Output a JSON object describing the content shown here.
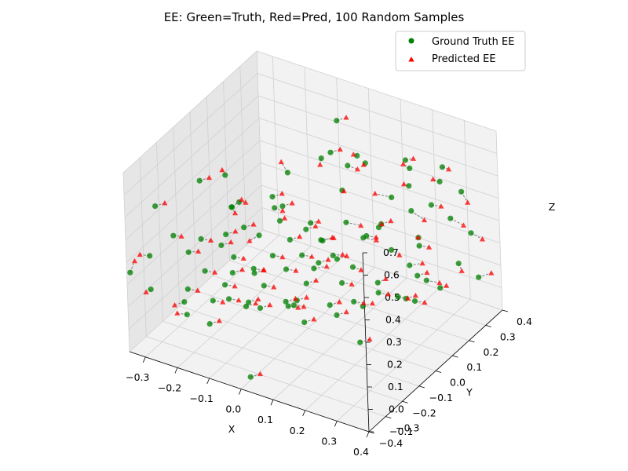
{
  "chart_data": {
    "type": "scatter",
    "projection": "3d",
    "title": "EE: Green=Truth, Red=Pred, 100 Random Samples",
    "xlabel": "X",
    "ylabel": "Y",
    "zlabel": "Z",
    "xlim": [
      -0.35,
      0.4
    ],
    "ylim": [
      -0.4,
      0.4
    ],
    "zlim": [
      -0.1,
      0.7
    ],
    "xticks": [
      "−0.3",
      "−0.2",
      "−0.1",
      "0.0",
      "0.1",
      "0.2",
      "0.3",
      "0.4"
    ],
    "yticks": [
      "−0.4",
      "−0.3",
      "−0.2",
      "−0.1",
      "0.0",
      "0.1",
      "0.2",
      "0.3",
      "0.4"
    ],
    "zticks": [
      "−0.1",
      "0.0",
      "0.1",
      "0.2",
      "0.3",
      "0.4",
      "0.5",
      "0.6",
      "0.7"
    ],
    "grid": true,
    "legend_position": "top-right",
    "colors": {
      "truth": "#008000",
      "pred": "#ff0000",
      "pane": "#f2f2f2",
      "grid": "#d0d0d0",
      "connector": "#7f7f7f"
    },
    "series": [
      {
        "name": "Ground Truth EE",
        "marker": "circle"
      },
      {
        "name": "Predicted EE",
        "marker": "triangle"
      }
    ],
    "pairs": [
      {
        "truth": [
          -0.02,
          -0.05,
          0.62
        ],
        "pred": [
          -0.05,
          -0.03,
          0.64
        ]
      },
      {
        "truth": [
          0.05,
          0.02,
          0.67
        ],
        "pred": [
          0.04,
          0.03,
          0.63
        ]
      },
      {
        "truth": [
          0.12,
          0.1,
          0.66
        ],
        "pred": [
          0.12,
          0.08,
          0.68
        ]
      },
      {
        "truth": [
          0.14,
          0.11,
          0.63
        ],
        "pred": [
          0.14,
          0.1,
          0.63
        ]
      },
      {
        "truth": [
          0.1,
          0.08,
          0.62
        ],
        "pred": [
          0.12,
          0.1,
          0.6
        ]
      },
      {
        "truth": [
          -0.18,
          -0.12,
          0.58
        ],
        "pred": [
          -0.2,
          -0.1,
          0.58
        ]
      },
      {
        "truth": [
          0.22,
          0.22,
          0.57
        ],
        "pred": [
          0.2,
          0.22,
          0.58
        ]
      },
      {
        "truth": [
          0.28,
          0.3,
          0.55
        ],
        "pred": [
          0.3,
          0.3,
          0.55
        ]
      },
      {
        "truth": [
          0.27,
          0.3,
          0.48
        ],
        "pred": [
          0.26,
          0.28,
          0.5
        ]
      },
      {
        "truth": [
          0.21,
          0.23,
          0.48
        ],
        "pred": [
          0.2,
          0.22,
          0.49
        ]
      },
      {
        "truth": [
          0.31,
          0.35,
          0.42
        ],
        "pred": [
          0.34,
          0.33,
          0.4
        ]
      },
      {
        "truth": [
          0.17,
          0.2,
          0.43
        ],
        "pred": [
          0.14,
          0.16,
          0.46
        ]
      },
      {
        "truth": [
          0.08,
          0.08,
          0.5
        ],
        "pred": [
          0.08,
          0.09,
          0.49
        ]
      },
      {
        "truth": [
          -0.12,
          -0.2,
          0.52
        ],
        "pred": [
          -0.12,
          -0.18,
          0.48
        ]
      },
      {
        "truth": [
          -0.15,
          -0.1,
          0.46
        ],
        "pred": [
          -0.14,
          -0.08,
          0.45
        ]
      },
      {
        "truth": [
          -0.06,
          -0.06,
          0.45
        ],
        "pred": [
          -0.04,
          -0.05,
          0.44
        ]
      },
      {
        "truth": [
          -0.2,
          -0.05,
          0.38
        ],
        "pred": [
          -0.18,
          -0.03,
          0.41
        ]
      },
      {
        "truth": [
          -0.11,
          -0.15,
          0.4
        ],
        "pred": [
          -0.09,
          -0.13,
          0.41
        ]
      },
      {
        "truth": [
          -0.05,
          -0.05,
          0.39
        ],
        "pred": [
          -0.04,
          -0.04,
          0.4
        ]
      },
      {
        "truth": [
          0.02,
          0.0,
          0.38
        ],
        "pred": [
          0.04,
          0.01,
          0.39
        ]
      },
      {
        "truth": [
          0.1,
          0.06,
          0.38
        ],
        "pred": [
          0.13,
          0.09,
          0.36
        ]
      },
      {
        "truth": [
          0.17,
          0.12,
          0.35
        ],
        "pred": [
          0.18,
          0.12,
          0.37
        ]
      },
      {
        "truth": [
          0.22,
          0.22,
          0.38
        ],
        "pred": [
          0.25,
          0.24,
          0.34
        ]
      },
      {
        "truth": [
          0.3,
          0.3,
          0.33
        ],
        "pred": [
          0.33,
          0.32,
          0.3
        ]
      },
      {
        "truth": [
          -0.28,
          -0.25,
          0.35
        ],
        "pred": [
          -0.26,
          -0.24,
          0.35
        ]
      },
      {
        "truth": [
          -0.22,
          -0.2,
          0.33
        ],
        "pred": [
          -0.2,
          -0.18,
          0.32
        ]
      },
      {
        "truth": [
          -0.09,
          -0.1,
          0.34
        ],
        "pred": [
          -0.11,
          -0.12,
          0.32
        ]
      },
      {
        "truth": [
          -0.02,
          -0.05,
          0.32
        ],
        "pred": [
          0.0,
          -0.03,
          0.33
        ]
      },
      {
        "truth": [
          0.04,
          0.02,
          0.3
        ],
        "pred": [
          0.07,
          0.04,
          0.31
        ]
      },
      {
        "truth": [
          0.12,
          0.12,
          0.28
        ],
        "pred": [
          0.15,
          0.14,
          0.27
        ]
      },
      {
        "truth": [
          0.24,
          0.22,
          0.27
        ],
        "pred": [
          0.25,
          0.2,
          0.29
        ]
      },
      {
        "truth": [
          -0.33,
          -0.3,
          0.27
        ],
        "pred": [
          -0.35,
          -0.32,
          0.28
        ]
      },
      {
        "truth": [
          -0.25,
          -0.22,
          0.27
        ],
        "pred": [
          -0.23,
          -0.2,
          0.27
        ]
      },
      {
        "truth": [
          -0.14,
          -0.16,
          0.26
        ],
        "pred": [
          -0.12,
          -0.14,
          0.25
        ]
      },
      {
        "truth": [
          -0.06,
          -0.08,
          0.25
        ],
        "pred": [
          -0.04,
          -0.06,
          0.24
        ]
      },
      {
        "truth": [
          0.0,
          -0.02,
          0.24
        ],
        "pred": [
          0.02,
          0.0,
          0.23
        ]
      },
      {
        "truth": [
          0.06,
          0.05,
          0.22
        ],
        "pred": [
          0.08,
          0.07,
          0.22
        ]
      },
      {
        "truth": [
          0.18,
          0.17,
          0.22
        ],
        "pred": [
          0.2,
          0.18,
          0.2
        ]
      },
      {
        "truth": [
          -0.2,
          -0.22,
          0.21
        ],
        "pred": [
          -0.18,
          -0.2,
          0.2
        ]
      },
      {
        "truth": [
          -0.1,
          -0.12,
          0.2
        ],
        "pred": [
          -0.08,
          -0.1,
          0.19
        ]
      },
      {
        "truth": [
          -0.03,
          -0.06,
          0.19
        ],
        "pred": [
          -0.01,
          -0.04,
          0.18
        ]
      },
      {
        "truth": [
          0.02,
          0.01,
          0.17
        ],
        "pred": [
          0.05,
          0.03,
          0.18
        ]
      },
      {
        "truth": [
          0.1,
          0.09,
          0.16
        ],
        "pred": [
          0.12,
          0.1,
          0.15
        ]
      },
      {
        "truth": [
          0.22,
          0.2,
          0.15
        ],
        "pred": [
          0.25,
          0.22,
          0.16
        ]
      },
      {
        "truth": [
          0.31,
          0.32,
          0.12
        ],
        "pred": [
          0.33,
          0.3,
          0.11
        ]
      },
      {
        "truth": [
          -0.33,
          -0.3,
          0.12
        ],
        "pred": [
          -0.34,
          -0.31,
          0.11
        ]
      },
      {
        "truth": [
          -0.24,
          -0.25,
          0.13
        ],
        "pred": [
          -0.22,
          -0.23,
          0.12
        ]
      },
      {
        "truth": [
          -0.16,
          -0.18,
          0.14
        ],
        "pred": [
          -0.14,
          -0.16,
          0.13
        ]
      },
      {
        "truth": [
          -0.08,
          -0.1,
          0.12
        ],
        "pred": [
          -0.06,
          -0.08,
          0.11
        ]
      },
      {
        "truth": [
          0.0,
          0.0,
          0.1
        ],
        "pred": [
          0.02,
          0.02,
          0.11
        ]
      },
      {
        "truth": [
          0.08,
          0.06,
          0.1
        ],
        "pred": [
          0.1,
          0.08,
          0.09
        ]
      },
      {
        "truth": [
          0.15,
          0.14,
          0.08
        ],
        "pred": [
          0.17,
          0.15,
          0.1
        ]
      },
      {
        "truth": [
          0.25,
          0.24,
          0.07
        ],
        "pred": [
          0.28,
          0.26,
          0.06
        ]
      },
      {
        "truth": [
          0.35,
          0.36,
          0.05
        ],
        "pred": [
          0.38,
          0.38,
          0.07
        ]
      },
      {
        "truth": [
          -0.2,
          -0.18,
          0.05
        ],
        "pred": [
          -0.18,
          -0.16,
          0.04
        ]
      },
      {
        "truth": [
          -0.12,
          -0.12,
          0.04
        ],
        "pred": [
          -0.1,
          -0.1,
          0.05
        ]
      },
      {
        "truth": [
          -0.02,
          -0.04,
          0.02
        ],
        "pred": [
          0.0,
          -0.02,
          0.01
        ]
      },
      {
        "truth": [
          0.05,
          0.04,
          0.0
        ],
        "pred": [
          0.07,
          0.06,
          0.01
        ]
      },
      {
        "truth": [
          0.18,
          0.2,
          -0.01
        ],
        "pred": [
          0.2,
          0.22,
          -0.02
        ]
      },
      {
        "truth": [
          0.26,
          0.3,
          0.0
        ],
        "pred": [
          0.28,
          0.3,
          0.02
        ]
      },
      {
        "truth": [
          -0.28,
          -0.2,
          0.02
        ],
        "pred": [
          -0.3,
          -0.22,
          0.01
        ]
      },
      {
        "truth": [
          -0.15,
          -0.08,
          -0.02
        ],
        "pred": [
          -0.13,
          -0.06,
          -0.01
        ]
      },
      {
        "truth": [
          -0.06,
          0.0,
          -0.03
        ],
        "pred": [
          -0.04,
          0.02,
          -0.04
        ]
      },
      {
        "truth": [
          0.1,
          0.14,
          -0.05
        ],
        "pred": [
          0.12,
          0.16,
          -0.04
        ]
      },
      {
        "truth": [
          0.2,
          0.26,
          -0.06
        ],
        "pred": [
          0.22,
          0.28,
          -0.07
        ]
      },
      {
        "truth": [
          -0.22,
          -0.05,
          -0.04
        ],
        "pred": [
          -0.2,
          -0.03,
          -0.05
        ]
      },
      {
        "truth": [
          -0.1,
          0.06,
          -0.07
        ],
        "pred": [
          -0.08,
          0.08,
          -0.06
        ]
      },
      {
        "truth": [
          0.05,
          0.18,
          -0.08
        ],
        "pred": [
          0.07,
          0.2,
          -0.09
        ]
      },
      {
        "truth": [
          -0.3,
          -0.15,
          -0.08
        ],
        "pred": [
          -0.32,
          -0.17,
          -0.07
        ]
      },
      {
        "truth": [
          -0.16,
          0.02,
          -0.1
        ],
        "pred": [
          -0.14,
          0.04,
          -0.09
        ]
      },
      {
        "truth": [
          0.15,
          0.3,
          -0.1
        ],
        "pred": [
          0.17,
          0.32,
          -0.09
        ]
      },
      {
        "truth": [
          -0.05,
          0.1,
          0.25
        ],
        "pred": [
          -0.03,
          0.12,
          0.26
        ]
      },
      {
        "truth": [
          -0.35,
          -0.38,
          0.24
        ],
        "pred": [
          -0.34,
          -0.37,
          0.29
        ]
      },
      {
        "truth": [
          0.32,
          0.38,
          0.22
        ],
        "pred": [
          0.35,
          0.39,
          0.2
        ]
      },
      {
        "truth": [
          -0.08,
          -0.28,
          0.3
        ],
        "pred": [
          -0.06,
          -0.26,
          0.31
        ]
      },
      {
        "truth": [
          0.05,
          -0.15,
          0.15
        ],
        "pred": [
          0.07,
          -0.13,
          0.16
        ]
      },
      {
        "truth": [
          0.12,
          -0.05,
          0.05
        ],
        "pred": [
          0.14,
          -0.03,
          0.06
        ]
      },
      {
        "truth": [
          0.2,
          0.05,
          0.12
        ],
        "pred": [
          0.22,
          0.07,
          0.11
        ]
      },
      {
        "truth": [
          -0.25,
          0.0,
          0.2
        ],
        "pred": [
          -0.23,
          0.02,
          0.21
        ]
      },
      {
        "truth": [
          0.28,
          0.15,
          0.3
        ],
        "pred": [
          0.3,
          0.17,
          0.29
        ]
      },
      {
        "truth": [
          -0.12,
          -0.35,
          0.1
        ],
        "pred": [
          -0.1,
          -0.33,
          0.11
        ]
      },
      {
        "truth": [
          0.0,
          -0.3,
          0.35
        ],
        "pred": [
          0.02,
          -0.28,
          0.36
        ]
      },
      {
        "truth": [
          0.15,
          -0.2,
          0.4
        ],
        "pred": [
          0.17,
          -0.18,
          0.41
        ]
      },
      {
        "truth": [
          0.25,
          -0.1,
          0.5
        ],
        "pred": [
          0.27,
          -0.08,
          0.49
        ]
      },
      {
        "truth": [
          -0.3,
          -0.05,
          0.45
        ],
        "pred": [
          -0.28,
          -0.03,
          0.46
        ]
      },
      {
        "truth": [
          0.35,
          0.1,
          0.55
        ],
        "pred": [
          0.37,
          0.12,
          0.54
        ]
      },
      {
        "truth": [
          -0.18,
          0.15,
          0.3
        ],
        "pred": [
          -0.16,
          0.17,
          0.31
        ]
      },
      {
        "truth": [
          0.08,
          0.3,
          0.2
        ],
        "pred": [
          0.1,
          0.32,
          0.21
        ]
      },
      {
        "truth": [
          -0.02,
          0.22,
          0.05
        ],
        "pred": [
          0.0,
          0.24,
          0.06
        ]
      },
      {
        "truth": [
          0.3,
          -0.25,
          0.15
        ],
        "pred": [
          0.32,
          -0.23,
          0.16
        ]
      },
      {
        "truth": [
          -0.1,
          0.35,
          0.4
        ],
        "pred": [
          -0.08,
          0.37,
          0.41
        ]
      },
      {
        "truth": [
          0.18,
          -0.35,
          0.25
        ],
        "pred": [
          0.2,
          -0.33,
          0.26
        ]
      },
      {
        "truth": [
          -0.32,
          0.1,
          0.05
        ],
        "pred": [
          -0.3,
          0.12,
          0.06
        ]
      },
      {
        "truth": [
          0.02,
          -0.38,
          -0.05
        ],
        "pred": [
          0.04,
          -0.36,
          -0.04
        ]
      },
      {
        "truth": [
          0.38,
          -0.05,
          0.35
        ],
        "pred": [
          0.4,
          -0.03,
          0.36
        ]
      },
      {
        "truth": [
          -0.22,
          0.28,
          0.15
        ],
        "pred": [
          -0.2,
          0.3,
          0.16
        ]
      },
      {
        "truth": [
          0.12,
          0.38,
          0.45
        ],
        "pred": [
          0.14,
          0.39,
          0.46
        ]
      },
      {
        "truth": [
          -0.28,
          -0.35,
          0.55
        ],
        "pred": [
          -0.26,
          -0.33,
          0.56
        ]
      },
      {
        "truth": [
          0.22,
          -0.3,
          0.6
        ],
        "pred": [
          0.24,
          -0.28,
          0.61
        ]
      },
      {
        "truth": [
          -0.05,
          0.3,
          0.6
        ],
        "pred": [
          -0.03,
          0.32,
          0.61
        ]
      }
    ]
  },
  "legend": {
    "truth_label": "Ground Truth EE",
    "pred_label": "Predicted EE"
  }
}
